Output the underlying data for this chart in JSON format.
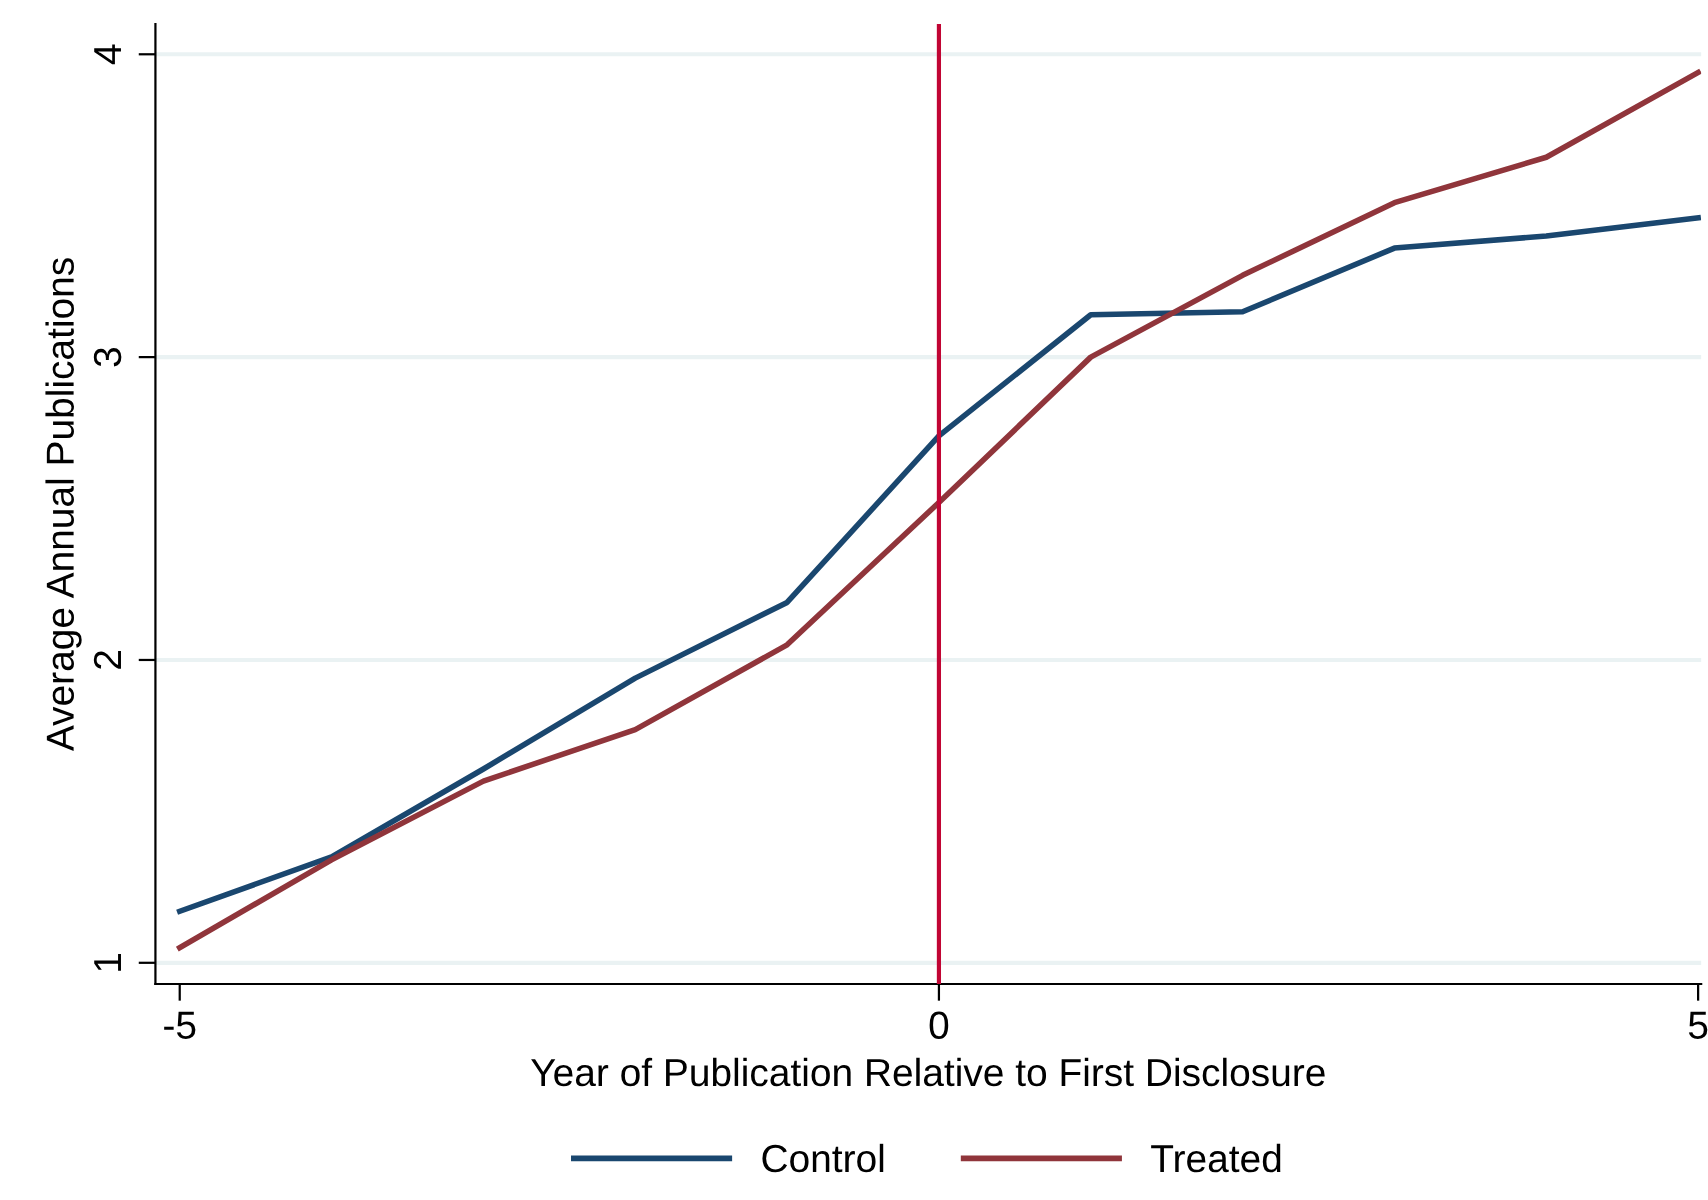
{
  "chart_data": {
    "type": "line",
    "xlabel": "Year of Publication Relative to First Disclosure",
    "ylabel": "Average Annual Publications",
    "x": [
      -5,
      -4,
      -3,
      -2,
      -1,
      0,
      1,
      2,
      3,
      4,
      5
    ],
    "series": [
      {
        "name": "Control",
        "color": "#1a476f",
        "values": [
          1.17,
          1.35,
          1.64,
          1.94,
          2.19,
          2.74,
          3.14,
          3.15,
          3.36,
          3.4,
          3.46
        ]
      },
      {
        "name": "Treated",
        "color": "#90353b",
        "values": [
          1.05,
          1.34,
          1.6,
          1.77,
          2.05,
          2.52,
          3.0,
          3.27,
          3.51,
          3.66,
          3.94
        ]
      }
    ],
    "xlim": [
      -5.16,
      5.02
    ],
    "ylim": [
      0.93,
      4.1
    ],
    "xticks": [
      -5,
      0,
      5
    ],
    "yticks": [
      1,
      2,
      3,
      4
    ],
    "ref_lines": [
      {
        "axis": "x",
        "value": 0,
        "color": "#c10534"
      }
    ],
    "grid": "y",
    "legend": "bottom",
    "marker": "none",
    "line_style": "solid"
  }
}
